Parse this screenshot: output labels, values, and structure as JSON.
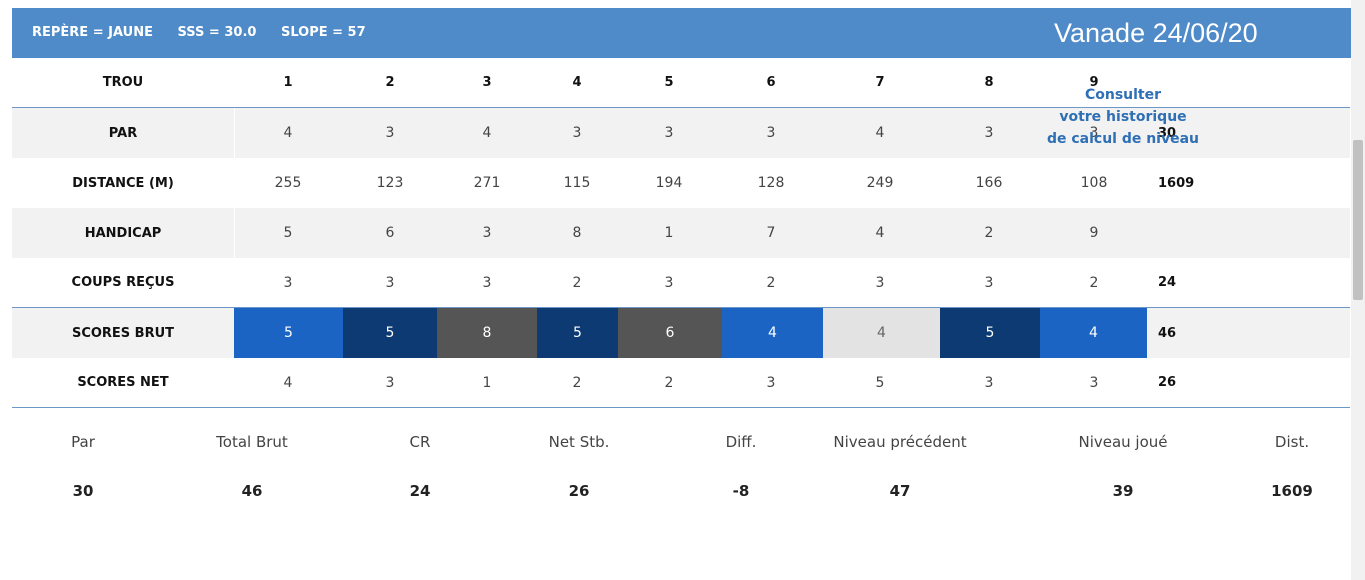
{
  "header": {
    "repere": "REPÈRE = JAUNE",
    "sss": "SSS = 30.0",
    "slope": "SLOPE = 57",
    "title": "Vanade 24/06/20"
  },
  "rows": {
    "trou": {
      "label": "TROU",
      "values": [
        "1",
        "2",
        "3",
        "4",
        "5",
        "6",
        "7",
        "8",
        "9"
      ],
      "total": ""
    },
    "par": {
      "label": "PAR",
      "values": [
        "4",
        "3",
        "4",
        "3",
        "3",
        "3",
        "4",
        "3",
        "3"
      ],
      "total": "30"
    },
    "distance": {
      "label": "DISTANCE (M)",
      "values": [
        "255",
        "123",
        "271",
        "115",
        "194",
        "128",
        "249",
        "166",
        "108"
      ],
      "total": "1609"
    },
    "handicap": {
      "label": "HANDICAP",
      "values": [
        "5",
        "6",
        "3",
        "8",
        "1",
        "7",
        "4",
        "2",
        "9"
      ],
      "total": ""
    },
    "coups": {
      "label": "COUPS REÇUS",
      "values": [
        "3",
        "3",
        "3",
        "2",
        "3",
        "2",
        "3",
        "3",
        "2"
      ],
      "total": "24"
    },
    "brut": {
      "label": "SCORES BRUT",
      "values": [
        "5",
        "5",
        "8",
        "5",
        "6",
        "4",
        "4",
        "5",
        "4"
      ],
      "total": "46"
    },
    "net": {
      "label": "SCORES NET",
      "values": [
        "4",
        "3",
        "1",
        "2",
        "2",
        "3",
        "5",
        "3",
        "3"
      ],
      "total": "26"
    }
  },
  "score_colors": [
    "#1c64c4",
    "#0d3a73",
    "#555555",
    "#0d3a73",
    "#555555",
    "#1c64c4",
    "#e3e3e3",
    "#0d3a73",
    "#1c64c4"
  ],
  "score_text_colors": [
    "#ffffff",
    "#ffffff",
    "#ffffff",
    "#ffffff",
    "#ffffff",
    "#ffffff",
    "#666666",
    "#ffffff",
    "#ffffff"
  ],
  "summary": {
    "labels": [
      "Par",
      "Total Brut",
      "CR",
      "Net Stb.",
      "Diff.",
      "Niveau précédent",
      "Niveau joué",
      "Dist."
    ],
    "values": [
      "30",
      "46",
      "24",
      "26",
      "-8",
      "47",
      "39",
      "1609"
    ]
  },
  "link": {
    "line1": "Consulter",
    "line2": "votre historique",
    "line3": "de calcul de niveau"
  }
}
